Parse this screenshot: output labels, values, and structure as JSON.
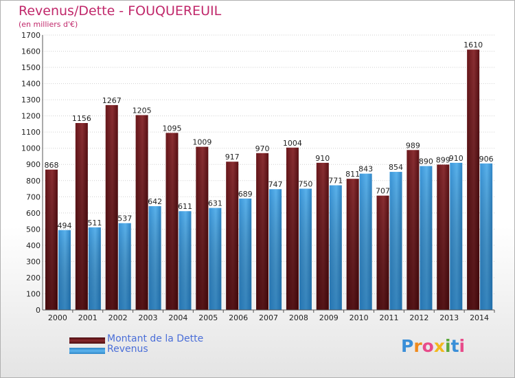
{
  "title": "Revenus/Dette - FOUQUEREUIL",
  "subtitle": "(en milliers d'€)",
  "colors": {
    "debt": "#7a1e22",
    "revenue": "#3f9de0",
    "title": "#c0276a",
    "legend_text": "#4a6ed8"
  },
  "legend": [
    {
      "label": "Montant de la Dette",
      "color": "#6e1a1e"
    },
    {
      "label": "Revenus",
      "color": "#3f9de0"
    }
  ],
  "logo": {
    "text": "Proxiti"
  },
  "chart_data": {
    "type": "bar",
    "title": "Revenus/Dette - FOUQUEREUIL",
    "subtitle": "(en milliers d'€)",
    "categories": [
      "2000",
      "2001",
      "2002",
      "2003",
      "2004",
      "2005",
      "2006",
      "2007",
      "2008",
      "2009",
      "2010",
      "2011",
      "2012",
      "2013",
      "2014"
    ],
    "series": [
      {
        "name": "Montant de la Dette",
        "values": [
          868,
          1156,
          1267,
          1205,
          1095,
          1009,
          917,
          970,
          1004,
          910,
          811,
          707,
          989,
          899,
          1610
        ]
      },
      {
        "name": "Revenus",
        "values": [
          494,
          511,
          537,
          642,
          611,
          631,
          689,
          747,
          750,
          771,
          843,
          854,
          890,
          910,
          906
        ]
      }
    ],
    "ylim": [
      0,
      1700
    ],
    "yticks": [
      0,
      100,
      200,
      300,
      400,
      500,
      600,
      700,
      800,
      900,
      1000,
      1100,
      1200,
      1300,
      1400,
      1500,
      1600,
      1700
    ],
    "grid": true,
    "legend_position": "bottom-left"
  }
}
